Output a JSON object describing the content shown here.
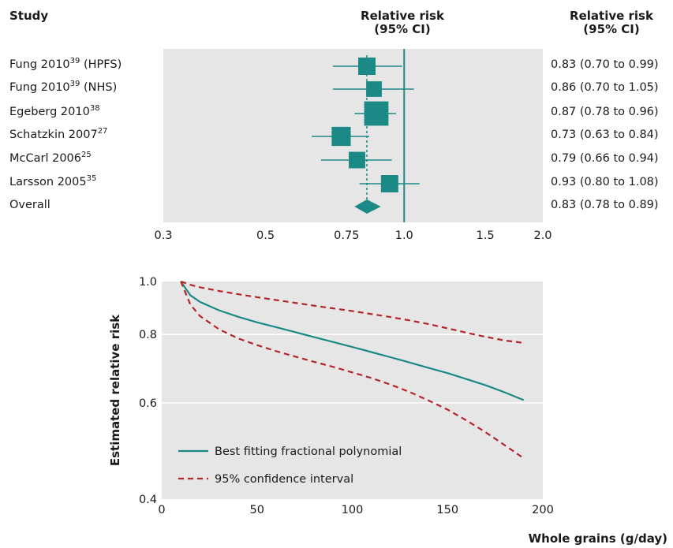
{
  "forest": {
    "header_study": "Study",
    "header_rr_line1": "Relative risk",
    "header_rr_line2": "(95% CI)",
    "header_ci_line1": "Relative risk",
    "header_ci_line2": "(95% CI)",
    "studies": [
      {
        "name": "Fung 2010",
        "ref": "39",
        "suffix": " (HPFS)",
        "rr": 0.83,
        "lo": 0.7,
        "hi": 0.99,
        "label": "0.83 (0.70 to 0.99)"
      },
      {
        "name": "Fung 2010",
        "ref": "39",
        "suffix": " (NHS)",
        "rr": 0.86,
        "lo": 0.7,
        "hi": 1.05,
        "label": "0.86 (0.70 to 1.05)"
      },
      {
        "name": "Egeberg 2010",
        "ref": "38",
        "suffix": "",
        "rr": 0.87,
        "lo": 0.78,
        "hi": 0.96,
        "label": "0.87 (0.78 to 0.96)"
      },
      {
        "name": "Schatzkin 2007",
        "ref": "27",
        "suffix": "",
        "rr": 0.73,
        "lo": 0.63,
        "hi": 0.84,
        "label": "0.73 (0.63 to 0.84)"
      },
      {
        "name": "McCarl 2006",
        "ref": "25",
        "suffix": "",
        "rr": 0.79,
        "lo": 0.66,
        "hi": 0.94,
        "label": "0.79 (0.66 to 0.94)"
      },
      {
        "name": "Larsson 2005",
        "ref": "35",
        "suffix": "",
        "rr": 0.93,
        "lo": 0.8,
        "hi": 1.08,
        "label": "0.93 (0.80 to 1.08)"
      }
    ],
    "overall": {
      "name": "Overall",
      "rr": 0.83,
      "lo": 0.78,
      "hi": 0.89,
      "label": "0.83 (0.78 to 0.89)"
    },
    "axis_ticks": [
      "0.3",
      "0.5",
      "0.75",
      "1.0",
      "1.5",
      "2.0"
    ],
    "axis_tick_values": [
      0.3,
      0.5,
      0.75,
      1.0,
      1.5,
      2.0
    ],
    "xlim": [
      0.3,
      2.0
    ],
    "scale": "log",
    "null_line": 1.0
  },
  "chart_data": [
    {
      "type": "scatter",
      "subtype": "forest-plot",
      "xscale": "log",
      "xlim": [
        0.3,
        2.0
      ],
      "note_marker_size": "square size proportional to study weight",
      "series": [
        {
          "name": "Fung 2010 (HPFS)",
          "estimate": 0.83,
          "ci": [
            0.7,
            0.99
          ]
        },
        {
          "name": "Fung 2010 (NHS)",
          "estimate": 0.86,
          "ci": [
            0.7,
            1.05
          ]
        },
        {
          "name": "Egeberg 2010",
          "estimate": 0.87,
          "ci": [
            0.78,
            0.96
          ]
        },
        {
          "name": "Schatzkin 2007",
          "estimate": 0.73,
          "ci": [
            0.63,
            0.84
          ]
        },
        {
          "name": "McCarl 2006",
          "estimate": 0.79,
          "ci": [
            0.66,
            0.94
          ]
        },
        {
          "name": "Larsson 2005",
          "estimate": 0.93,
          "ci": [
            0.8,
            1.08
          ]
        },
        {
          "name": "Overall",
          "estimate": 0.83,
          "ci": [
            0.78,
            0.89
          ]
        }
      ],
      "weights": [
        1.0,
        0.9,
        1.4,
        1.1,
        0.95,
        1.0
      ]
    },
    {
      "type": "line",
      "xlabel": "Whole grains (g/day)",
      "ylabel": "Estimated relative risk",
      "xlim": [
        0,
        200
      ],
      "ylim": [
        0.4,
        1.0
      ],
      "yscale": "log",
      "grid": true,
      "legend_position": "bottom-left",
      "x_ticks": [
        "0",
        "50",
        "100",
        "150",
        "200"
      ],
      "x_tick_values": [
        0,
        50,
        100,
        150,
        200
      ],
      "y_ticks": [
        "0.4",
        "0.6",
        "0.8",
        "1.0"
      ],
      "y_tick_values": [
        0.4,
        0.6,
        0.8,
        1.0
      ],
      "x": [
        10,
        15,
        20,
        30,
        40,
        50,
        60,
        70,
        80,
        90,
        100,
        110,
        120,
        130,
        140,
        150,
        160,
        170,
        180,
        190
      ],
      "series": [
        {
          "name": "Best fitting fractional polynomial",
          "style": "solid",
          "color": "#1b8a86",
          "values": [
            1.0,
            0.944,
            0.918,
            0.886,
            0.862,
            0.842,
            0.825,
            0.808,
            0.791,
            0.775,
            0.759,
            0.743,
            0.727,
            0.711,
            0.695,
            0.68,
            0.663,
            0.646,
            0.627,
            0.607
          ]
        },
        {
          "name": "95% confidence interval",
          "style": "dashed",
          "color": "#b3262a",
          "values": [
            1.0,
            0.986,
            0.976,
            0.961,
            0.948,
            0.936,
            0.925,
            0.914,
            0.903,
            0.893,
            0.883,
            0.872,
            0.861,
            0.849,
            0.836,
            0.821,
            0.806,
            0.792,
            0.78,
            0.772
          ]
        },
        {
          "name": "",
          "style": "dashed",
          "color": "#b3262a",
          "values": [
            1.0,
            0.908,
            0.865,
            0.818,
            0.787,
            0.765,
            0.746,
            0.729,
            0.713,
            0.698,
            0.682,
            0.666,
            0.648,
            0.628,
            0.606,
            0.583,
            0.557,
            0.53,
            0.502,
            0.475
          ]
        }
      ]
    }
  ],
  "colors": {
    "teal": "#1b8a86",
    "red": "#b3262a",
    "panel": "#e6e6e6"
  }
}
